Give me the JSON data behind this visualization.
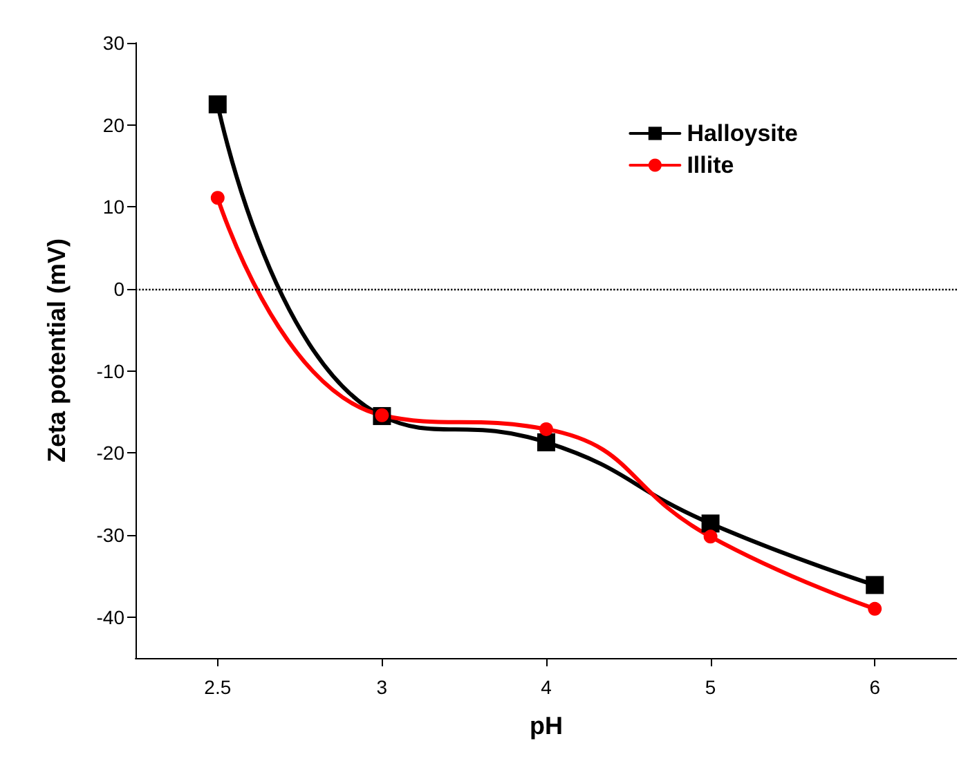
{
  "chart_data": {
    "type": "line",
    "xlabel": "pH",
    "ylabel": "Zeta potential (mV)",
    "categories": [
      "2.5",
      "3",
      "4",
      "5",
      "6"
    ],
    "series": [
      {
        "name": "Halloysite",
        "color": "#000000",
        "marker": "square",
        "values": [
          22.5,
          -15.5,
          -18.7,
          -28.6,
          -36.1
        ]
      },
      {
        "name": "Illite",
        "color": "#ff0000",
        "marker": "circle",
        "values": [
          11.1,
          -15.4,
          -17.1,
          -30.2,
          -39.0
        ]
      }
    ],
    "ylim": [
      -45,
      30
    ],
    "yticks": [
      -40,
      -30,
      -20,
      -10,
      0,
      10,
      20,
      30
    ],
    "ref_lines": [
      {
        "axis": "y",
        "value": 0,
        "color": "#000000",
        "line_style": "dotted"
      }
    ],
    "legend": "top right",
    "grid": false,
    "line_style": "solid"
  }
}
